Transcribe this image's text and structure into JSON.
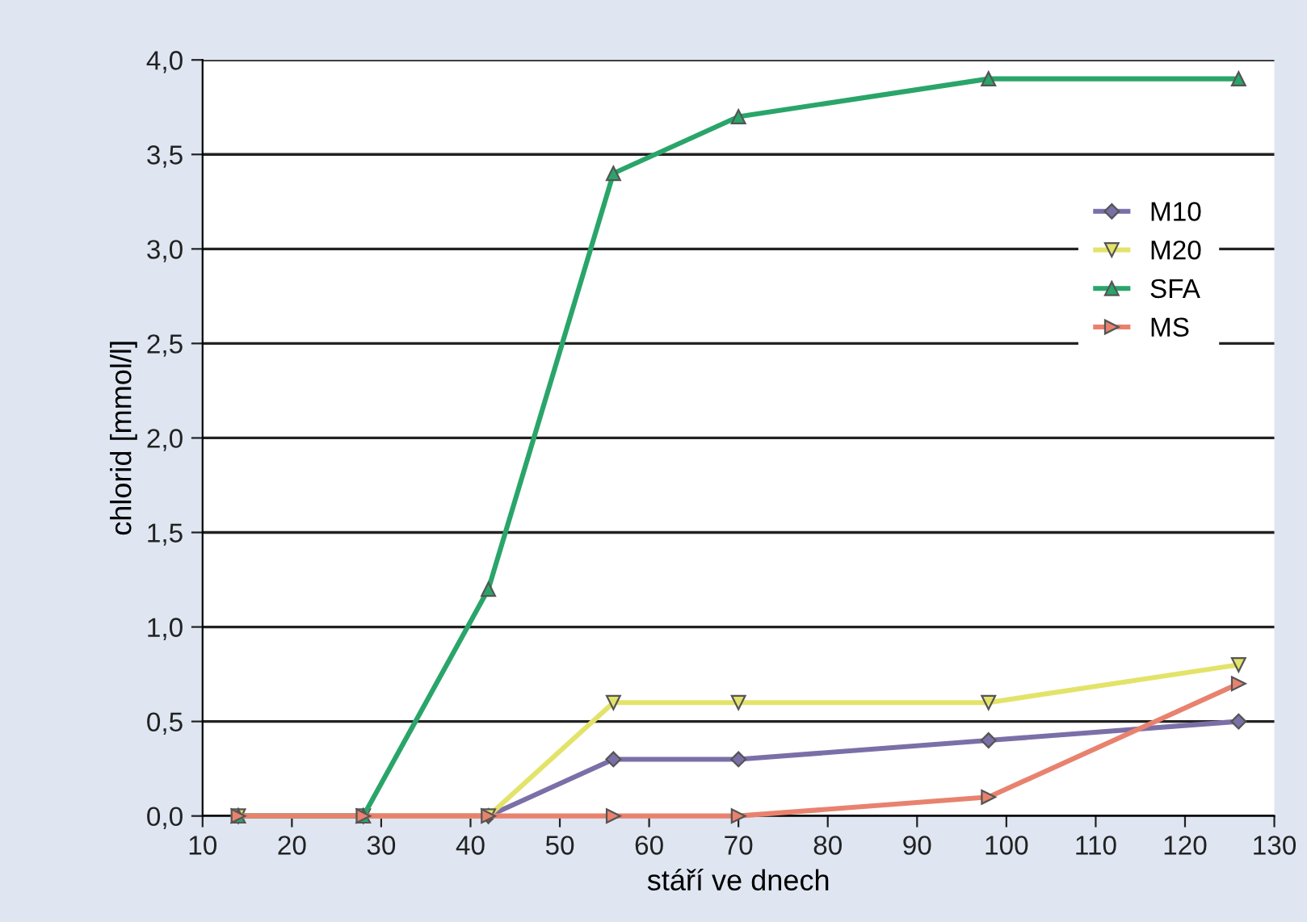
{
  "chart_data": {
    "type": "line",
    "xlabel": "stáří ve dnech",
    "ylabel": "chlorid [mmol/l]",
    "x": [
      14,
      28,
      42,
      56,
      70,
      98,
      126
    ],
    "series": [
      {
        "name": "M10",
        "color": "#7b6fa8",
        "marker": "diamond",
        "values": [
          0,
          0,
          0,
          0.3,
          0.3,
          0.4,
          0.5
        ]
      },
      {
        "name": "M20",
        "color": "#e3e36a",
        "marker": "triangle_down",
        "values": [
          0,
          0,
          0,
          0.6,
          0.6,
          0.6,
          0.8
        ]
      },
      {
        "name": "SFA",
        "color": "#2aa56a",
        "marker": "triangle",
        "values": [
          0,
          0,
          1.2,
          3.4,
          3.7,
          3.9,
          3.9
        ]
      },
      {
        "name": "MS",
        "color": "#e8826e",
        "marker": "triangle_right",
        "values": [
          0,
          0,
          0,
          0,
          0,
          0.1,
          0.7
        ]
      }
    ],
    "xlim": [
      10,
      130
    ],
    "xticks": [
      10,
      20,
      30,
      40,
      50,
      60,
      70,
      80,
      90,
      100,
      110,
      120,
      130
    ],
    "ylim": [
      0,
      4
    ],
    "yticks": [
      {
        "value": 0,
        "label": "0,0"
      },
      {
        "value": 0.5,
        "label": "0,5"
      },
      {
        "value": 1,
        "label": "1,0"
      },
      {
        "value": 1.5,
        "label": "1,5"
      },
      {
        "value": 2,
        "label": "2,0"
      },
      {
        "value": 2.5,
        "label": "2,5"
      },
      {
        "value": 3,
        "label": "3,0"
      },
      {
        "value": 3.5,
        "label": "3,5"
      },
      {
        "value": 4,
        "label": "4,0"
      }
    ],
    "grid": "y",
    "legend": "right",
    "line_style": "solid"
  }
}
